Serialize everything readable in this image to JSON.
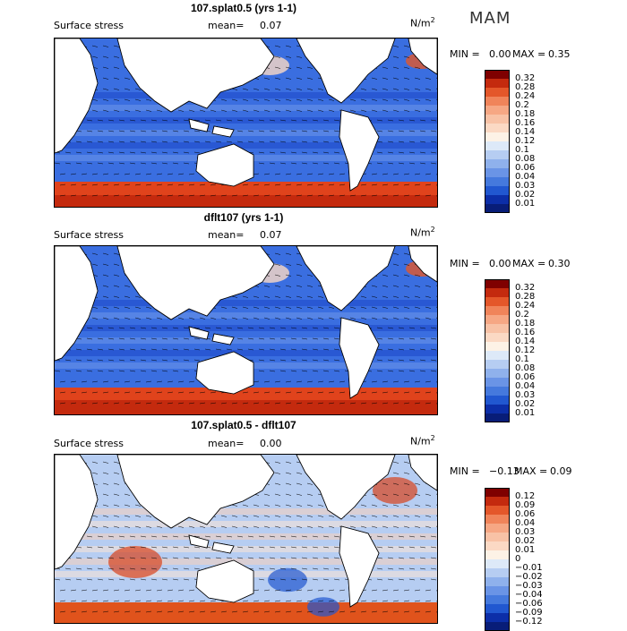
{
  "season": "MAM",
  "panels": [
    {
      "title": "107.splat0.5 (yrs 1-1)",
      "field_label": "Surface stress",
      "mean_label": "mean=",
      "mean_value": "0.07",
      "unit_main": "N/m",
      "unit_sup": "2",
      "min_label": "MIN =",
      "min_value": "0.00",
      "max_label": "MAX =",
      "max_value": "0.35",
      "colorbar": {
        "labels": [
          "0.32",
          "0.28",
          "0.24",
          "0.2",
          "0.18",
          "0.16",
          "0.14",
          "0.12",
          "0.1",
          "0.08",
          "0.06",
          "0.04",
          "0.03",
          "0.02",
          "0.01"
        ],
        "colors": [
          "#7f0000",
          "#c42a0e",
          "#e4572a",
          "#f0845a",
          "#f6a784",
          "#f8c2a6",
          "#fbd9c4",
          "#fdf2e6",
          "#dde9f8",
          "#b6cdf2",
          "#8fb1ec",
          "#6a94e6",
          "#4579dd",
          "#2157d0",
          "#0c2ea8",
          "#081d78"
        ]
      }
    },
    {
      "title": "dflt107 (yrs 1-1)",
      "field_label": "Surface stress",
      "mean_label": "mean=",
      "mean_value": "0.07",
      "unit_main": "N/m",
      "unit_sup": "2",
      "min_label": "MIN =",
      "min_value": "0.00",
      "max_label": "MAX =",
      "max_value": "0.30",
      "colorbar": {
        "labels": [
          "0.32",
          "0.28",
          "0.24",
          "0.2",
          "0.18",
          "0.16",
          "0.14",
          "0.12",
          "0.1",
          "0.08",
          "0.06",
          "0.04",
          "0.03",
          "0.02",
          "0.01"
        ],
        "colors": [
          "#7f0000",
          "#c42a0e",
          "#e4572a",
          "#f0845a",
          "#f6a784",
          "#f8c2a6",
          "#fbd9c4",
          "#fdf2e6",
          "#dde9f8",
          "#b6cdf2",
          "#8fb1ec",
          "#6a94e6",
          "#4579dd",
          "#2157d0",
          "#0c2ea8",
          "#081d78"
        ]
      }
    },
    {
      "title": "107.splat0.5 - dflt107",
      "field_label": "Surface stress",
      "mean_label": "mean=",
      "mean_value": "0.00",
      "unit_main": "N/m",
      "unit_sup": "2",
      "min_label": "MIN =",
      "min_value": "−0.13",
      "max_label": "MAX =",
      "max_value": "0.09",
      "colorbar": {
        "labels": [
          "0.12",
          "0.09",
          "0.06",
          "0.04",
          "0.03",
          "0.02",
          "0.01",
          "0",
          "−0.01",
          "−0.02",
          "−0.03",
          "−0.04",
          "−0.06",
          "−0.09",
          "−0.12"
        ],
        "colors": [
          "#7f0000",
          "#c42a0e",
          "#e4572a",
          "#f0845a",
          "#f6a784",
          "#f8c2a6",
          "#fbd9c4",
          "#fdf2e6",
          "#dde9f8",
          "#b6cdf2",
          "#8fb1ec",
          "#6a94e6",
          "#4579dd",
          "#2157d0",
          "#0c2ea8",
          "#081d78"
        ]
      }
    }
  ],
  "colors": {
    "ocean_low": "#1f4fd6",
    "ocean_mid": "#6f9be9",
    "ocean_pale": "#d9e6f7",
    "stress_high": "#d9431c",
    "land": "#ffffff",
    "coast": "#000000"
  }
}
